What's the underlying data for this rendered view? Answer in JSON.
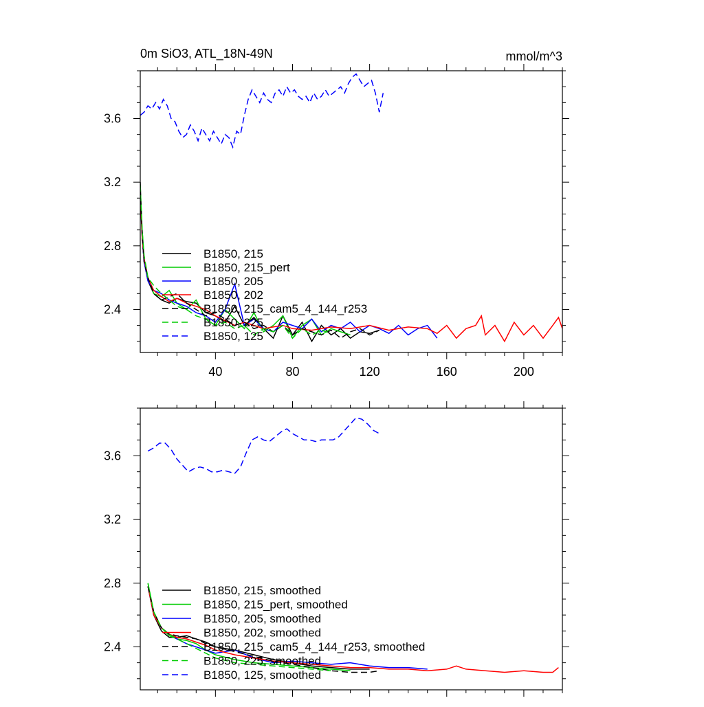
{
  "top_left_title": "0m SiO3, ATL_18N-49N",
  "top_right_title": "mmol/m^3",
  "chart_data": [
    {
      "type": "line",
      "panel": "raw",
      "xlim": [
        1,
        220
      ],
      "ylim": [
        2.13,
        3.9
      ],
      "xticks": [
        40,
        80,
        120,
        160,
        200
      ],
      "yticks": [
        2.4,
        2.8,
        3.2,
        3.6
      ],
      "legend_position": "middle-left",
      "series": [
        {
          "name": "B1850, 215",
          "color": "#000000",
          "dash": "solid",
          "x": [
            1,
            2,
            3,
            5,
            8,
            12,
            16,
            20,
            25,
            30,
            35,
            40,
            45,
            50,
            55,
            60,
            65,
            70,
            75,
            80,
            85,
            90,
            95,
            100,
            105,
            110,
            115,
            120,
            125
          ],
          "y": [
            3.2,
            2.85,
            2.7,
            2.58,
            2.5,
            2.46,
            2.44,
            2.47,
            2.45,
            2.44,
            2.38,
            2.36,
            2.32,
            2.42,
            2.3,
            2.35,
            2.28,
            2.22,
            2.36,
            2.24,
            2.32,
            2.2,
            2.3,
            2.24,
            2.28,
            2.22,
            2.26,
            2.25,
            2.27
          ]
        },
        {
          "name": "B1850, 215_pert",
          "color": "#00cc00",
          "dash": "solid",
          "x": [
            1,
            2,
            3,
            5,
            8,
            12,
            16,
            20,
            25,
            30,
            35,
            40,
            45,
            50,
            55,
            60,
            65,
            70,
            75,
            80,
            85,
            90,
            95,
            100,
            105,
            110
          ],
          "y": [
            3.15,
            2.9,
            2.72,
            2.6,
            2.5,
            2.48,
            2.52,
            2.44,
            2.4,
            2.46,
            2.34,
            2.3,
            2.4,
            2.34,
            2.28,
            2.38,
            2.26,
            2.3,
            2.36,
            2.22,
            2.3,
            2.34,
            2.24,
            2.28,
            2.26,
            2.24
          ]
        },
        {
          "name": "B1850, 205",
          "color": "#0000ff",
          "dash": "solid",
          "x": [
            1,
            2,
            3,
            5,
            8,
            12,
            16,
            20,
            25,
            30,
            35,
            40,
            45,
            50,
            55,
            60,
            65,
            70,
            75,
            80,
            85,
            90,
            95,
            100,
            105,
            110,
            115,
            120,
            125,
            130,
            135,
            140,
            145,
            150,
            155
          ],
          "y": [
            3.1,
            2.85,
            2.7,
            2.58,
            2.52,
            2.5,
            2.46,
            2.44,
            2.42,
            2.38,
            2.36,
            2.32,
            2.4,
            2.56,
            2.3,
            2.34,
            2.28,
            2.26,
            2.32,
            2.3,
            2.28,
            2.34,
            2.26,
            2.3,
            2.28,
            2.32,
            2.26,
            2.3,
            2.28,
            2.25,
            2.3,
            2.24,
            2.28,
            2.3,
            2.22
          ]
        },
        {
          "name": "B1850, 202",
          "color": "#ff0000",
          "dash": "solid",
          "x": [
            1,
            2,
            3,
            5,
            8,
            12,
            16,
            20,
            25,
            30,
            35,
            40,
            45,
            50,
            55,
            60,
            65,
            70,
            75,
            80,
            90,
            100,
            110,
            120,
            130,
            140,
            150,
            155,
            160,
            165,
            170,
            175,
            178,
            180,
            185,
            190,
            195,
            200,
            205,
            210,
            215,
            218,
            220
          ],
          "y": [
            3.12,
            2.85,
            2.72,
            2.6,
            2.52,
            2.48,
            2.45,
            2.47,
            2.44,
            2.42,
            2.4,
            2.36,
            2.33,
            2.3,
            2.32,
            2.3,
            2.28,
            2.29,
            2.3,
            2.28,
            2.27,
            2.29,
            2.28,
            2.3,
            2.27,
            2.29,
            2.28,
            2.25,
            2.3,
            2.22,
            2.28,
            2.3,
            2.36,
            2.24,
            2.3,
            2.2,
            2.32,
            2.24,
            2.3,
            2.22,
            2.3,
            2.35,
            2.28
          ]
        },
        {
          "name": "B1850, 215_cam5_4_144_r253",
          "color": "#000000",
          "dash": "dashed",
          "x": [
            1,
            2,
            3,
            5,
            8,
            12,
            16,
            20,
            25,
            30,
            35,
            40,
            45,
            50,
            55,
            60,
            65,
            70,
            75,
            80,
            85,
            90,
            95,
            100,
            105,
            110,
            115,
            120,
            125
          ],
          "y": [
            3.15,
            2.88,
            2.7,
            2.6,
            2.5,
            2.46,
            2.48,
            2.5,
            2.44,
            2.4,
            2.36,
            2.38,
            2.34,
            2.3,
            2.32,
            2.28,
            2.3,
            2.26,
            2.3,
            2.24,
            2.28,
            2.26,
            2.24,
            2.27,
            2.22,
            2.26,
            2.28,
            2.24,
            2.27
          ]
        },
        {
          "name": "B1850, 225",
          "color": "#00cc00",
          "dash": "dashed",
          "x": [
            1,
            2,
            3,
            5,
            8,
            12,
            16,
            20,
            25,
            30,
            35,
            40,
            45,
            50,
            55,
            60,
            65,
            70,
            75,
            80,
            85,
            90,
            95,
            100
          ],
          "y": [
            3.18,
            2.9,
            2.74,
            2.6,
            2.55,
            2.5,
            2.46,
            2.42,
            2.4,
            2.36,
            2.34,
            2.3,
            2.32,
            2.28,
            2.3,
            2.24,
            2.28,
            2.26,
            2.3,
            2.22,
            2.28,
            2.24,
            2.27,
            2.25
          ]
        },
        {
          "name": "B1850, 125",
          "color": "#0000ff",
          "dash": "dashed",
          "x": [
            1,
            3,
            5,
            7,
            9,
            11,
            13,
            15,
            17,
            19,
            21,
            23,
            25,
            27,
            29,
            31,
            33,
            35,
            37,
            39,
            41,
            43,
            45,
            47,
            49,
            51,
            53,
            55,
            57,
            59,
            61,
            63,
            65,
            67,
            69,
            71,
            73,
            75,
            77,
            79,
            81,
            83,
            85,
            87,
            89,
            91,
            93,
            95,
            97,
            99,
            101,
            103,
            105,
            107,
            109,
            111,
            113,
            115,
            117,
            119,
            121,
            123,
            125,
            127
          ],
          "y": [
            3.62,
            3.64,
            3.68,
            3.66,
            3.7,
            3.66,
            3.72,
            3.68,
            3.6,
            3.58,
            3.52,
            3.48,
            3.5,
            3.56,
            3.52,
            3.46,
            3.54,
            3.5,
            3.46,
            3.52,
            3.48,
            3.44,
            3.5,
            3.48,
            3.42,
            3.52,
            3.5,
            3.62,
            3.72,
            3.78,
            3.74,
            3.7,
            3.76,
            3.72,
            3.7,
            3.76,
            3.78,
            3.74,
            3.8,
            3.76,
            3.78,
            3.74,
            3.72,
            3.74,
            3.7,
            3.76,
            3.72,
            3.74,
            3.78,
            3.74,
            3.76,
            3.78,
            3.8,
            3.76,
            3.82,
            3.86,
            3.88,
            3.84,
            3.8,
            3.82,
            3.84,
            3.76,
            3.64,
            3.76
          ]
        }
      ]
    },
    {
      "type": "line",
      "panel": "smoothed",
      "xlim": [
        1,
        220
      ],
      "ylim": [
        2.13,
        3.9
      ],
      "xticks": [
        40,
        80,
        120,
        160,
        200
      ],
      "yticks": [
        2.4,
        2.8,
        3.2,
        3.6
      ],
      "legend_position": "bottom-left",
      "series": [
        {
          "name": "B1850, 215, smoothed",
          "color": "#000000",
          "dash": "solid",
          "x": [
            5,
            8,
            12,
            16,
            20,
            25,
            30,
            35,
            40,
            50,
            60,
            70,
            80,
            90,
            100,
            110,
            120
          ],
          "y": [
            2.78,
            2.6,
            2.5,
            2.46,
            2.46,
            2.47,
            2.45,
            2.43,
            2.4,
            2.38,
            2.35,
            2.32,
            2.3,
            2.28,
            2.27,
            2.26,
            2.26
          ]
        },
        {
          "name": "B1850, 215_pert, smoothed",
          "color": "#00cc00",
          "dash": "solid",
          "x": [
            5,
            8,
            12,
            16,
            20,
            25,
            30,
            35,
            40,
            50,
            60,
            70,
            80,
            90,
            100,
            110
          ],
          "y": [
            2.8,
            2.62,
            2.52,
            2.47,
            2.45,
            2.44,
            2.42,
            2.38,
            2.35,
            2.32,
            2.3,
            2.29,
            2.28,
            2.27,
            2.26,
            2.25
          ]
        },
        {
          "name": "B1850, 205, smoothed",
          "color": "#0000ff",
          "dash": "solid",
          "x": [
            5,
            8,
            12,
            16,
            20,
            25,
            30,
            35,
            40,
            50,
            60,
            70,
            80,
            90,
            100,
            110,
            120,
            130,
            140,
            150
          ],
          "y": [
            2.78,
            2.6,
            2.52,
            2.48,
            2.45,
            2.42,
            2.4,
            2.38,
            2.36,
            2.38,
            2.33,
            2.3,
            2.31,
            2.3,
            2.29,
            2.3,
            2.28,
            2.27,
            2.27,
            2.26
          ]
        },
        {
          "name": "B1850, 202, smoothed",
          "color": "#ff0000",
          "dash": "solid",
          "x": [
            5,
            8,
            12,
            16,
            20,
            25,
            30,
            35,
            40,
            50,
            60,
            70,
            80,
            90,
            100,
            110,
            120,
            130,
            140,
            150,
            160,
            165,
            170,
            180,
            190,
            200,
            210,
            215,
            218
          ],
          "y": [
            2.78,
            2.6,
            2.52,
            2.48,
            2.46,
            2.45,
            2.43,
            2.41,
            2.38,
            2.35,
            2.33,
            2.31,
            2.3,
            2.29,
            2.28,
            2.27,
            2.27,
            2.26,
            2.26,
            2.25,
            2.26,
            2.28,
            2.26,
            2.25,
            2.24,
            2.25,
            2.24,
            2.24,
            2.27
          ]
        },
        {
          "name": "B1850, 215_cam5_4_144_r253, smoothed",
          "color": "#000000",
          "dash": "dashed",
          "x": [
            5,
            8,
            12,
            16,
            20,
            25,
            30,
            35,
            40,
            50,
            60,
            70,
            80,
            90,
            100,
            110,
            120,
            125
          ],
          "y": [
            2.78,
            2.62,
            2.52,
            2.48,
            2.47,
            2.46,
            2.45,
            2.42,
            2.4,
            2.37,
            2.34,
            2.31,
            2.29,
            2.27,
            2.25,
            2.24,
            2.24,
            2.25
          ]
        },
        {
          "name": "B1850, 225, smoothed",
          "color": "#00cc00",
          "dash": "dashed",
          "x": [
            5,
            8,
            12,
            16,
            20,
            25,
            30,
            35,
            40,
            50,
            60,
            70,
            80,
            90,
            100
          ],
          "y": [
            2.8,
            2.62,
            2.52,
            2.48,
            2.45,
            2.42,
            2.39,
            2.36,
            2.33,
            2.3,
            2.29,
            2.28,
            2.27,
            2.26,
            2.25
          ]
        },
        {
          "name": "B1850, 125, smoothed",
          "color": "#0000ff",
          "dash": "dashed",
          "x": [
            5,
            8,
            11,
            14,
            17,
            20,
            23,
            26,
            29,
            32,
            35,
            38,
            41,
            44,
            47,
            50,
            53,
            56,
            59,
            62,
            65,
            68,
            71,
            74,
            77,
            80,
            83,
            86,
            89,
            92,
            95,
            98,
            101,
            104,
            107,
            110,
            113,
            116,
            119,
            122,
            125
          ],
          "y": [
            3.63,
            3.65,
            3.68,
            3.68,
            3.64,
            3.58,
            3.54,
            3.5,
            3.52,
            3.53,
            3.52,
            3.5,
            3.5,
            3.51,
            3.5,
            3.49,
            3.53,
            3.62,
            3.7,
            3.72,
            3.7,
            3.69,
            3.72,
            3.75,
            3.77,
            3.74,
            3.72,
            3.7,
            3.7,
            3.69,
            3.7,
            3.7,
            3.7,
            3.72,
            3.76,
            3.8,
            3.84,
            3.83,
            3.8,
            3.76,
            3.74
          ]
        }
      ]
    }
  ]
}
